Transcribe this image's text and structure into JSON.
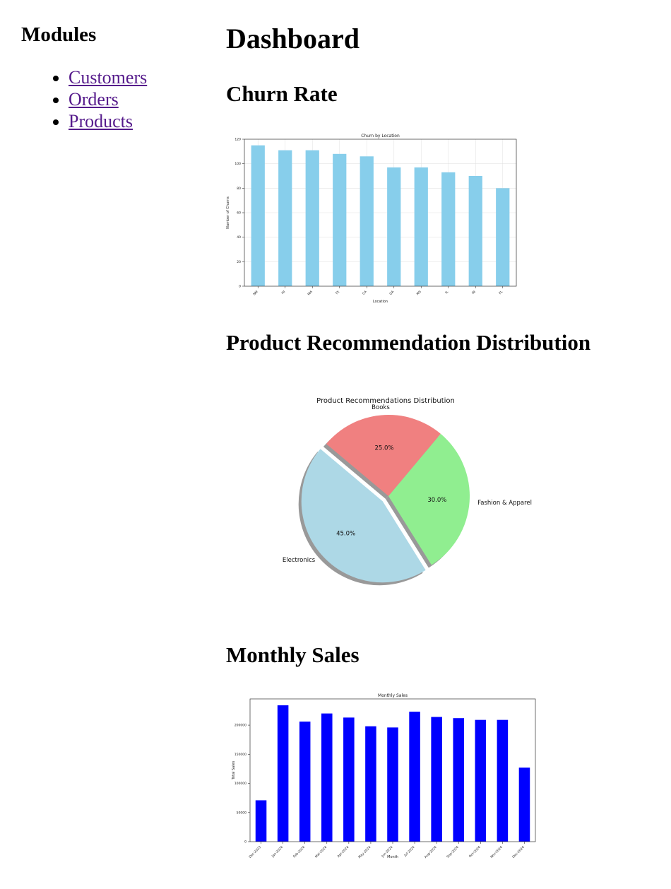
{
  "sidebar": {
    "title": "Modules",
    "links": [
      "Customers",
      "Orders",
      "Products"
    ]
  },
  "main": {
    "title": "Dashboard",
    "sections": [
      {
        "heading": "Churn Rate"
      },
      {
        "heading": "Product Recommendation Distribution"
      },
      {
        "heading": "Monthly Sales"
      }
    ]
  },
  "colors": {
    "churn_bar": "#87ceeb",
    "sales_bar": "#0000ff",
    "link": "#551a8b",
    "pie_books": "#f08080",
    "pie_fashion": "#90ee90",
    "pie_electronics": "#add8e6"
  },
  "chart_data": [
    {
      "type": "bar",
      "title": "Churn by Location",
      "xlabel": "Location",
      "ylabel": "Number of Churns",
      "categories": [
        "NM",
        "HI",
        "WA",
        "TX",
        "CA",
        "GA",
        "MS",
        "IL",
        "IN",
        "FL"
      ],
      "values": [
        115,
        111,
        111,
        108,
        106,
        97,
        97,
        93,
        90,
        80
      ],
      "ylim": [
        0,
        120
      ],
      "yticks": [
        "0",
        "20",
        "40",
        "60",
        "80",
        "100",
        "120"
      ],
      "grid": true
    },
    {
      "type": "pie",
      "title": "Product Recommendations Distribution",
      "labels": [
        "Books",
        "Fashion & Apparel",
        "Electronics"
      ],
      "values": [
        25.0,
        30.0,
        45.0
      ],
      "pct_labels": [
        "25.0%",
        "30.0%",
        "45.0%"
      ],
      "exploded": "Electronics",
      "shadow": true
    },
    {
      "type": "bar",
      "title": "Monthly Sales",
      "xlabel": "Month",
      "ylabel": "Total Sales",
      "categories": [
        "Dec-2023",
        "Jan-2024",
        "Feb-2024",
        "Mar-2024",
        "Apr-2024",
        "May-2024",
        "Jun-2024",
        "Jul-2024",
        "Aug-2024",
        "Sep-2024",
        "Oct-2024",
        "Nov-2024",
        "Dec-2024"
      ],
      "values": [
        71000,
        234000,
        206000,
        220000,
        213000,
        198000,
        196000,
        223000,
        214000,
        212000,
        209000,
        209000,
        127000
      ],
      "ylim": [
        0,
        245000
      ],
      "yticks": [
        "0",
        "50000",
        "100000",
        "150000",
        "200000"
      ],
      "grid": false
    }
  ]
}
